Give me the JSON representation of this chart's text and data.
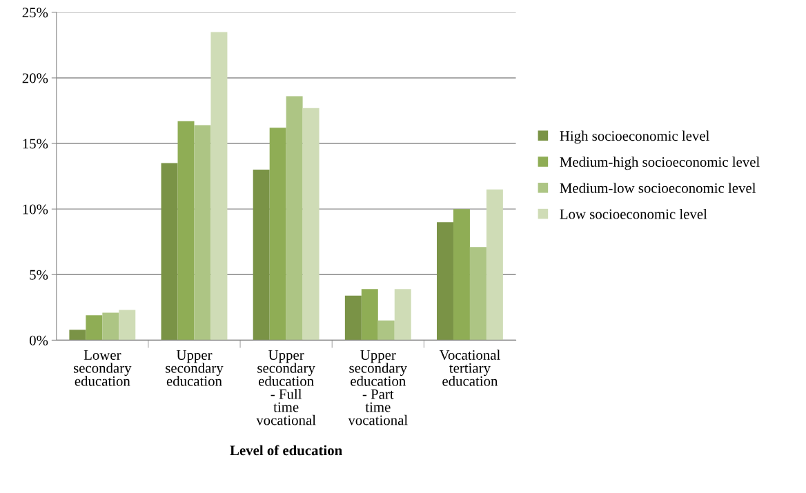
{
  "chart_data": {
    "type": "bar",
    "xlabel": "Level of education",
    "categories": [
      "Lower secondary education",
      "Upper secondary education",
      "Upper secondary education - Full time vocational",
      "Upper secondary education - Part time vocational",
      "Vocational tertiary education"
    ],
    "series": [
      {
        "name": "High socioeconomic level",
        "color": "#7a9346",
        "values": [
          0.8,
          13.5,
          13.0,
          3.4,
          9.0
        ]
      },
      {
        "name": "Medium-high socioeconomic level",
        "color": "#8fad55",
        "values": [
          1.9,
          16.7,
          16.2,
          3.9,
          10.0
        ]
      },
      {
        "name": "Medium-low socioeconomic level",
        "color": "#adc584",
        "values": [
          2.1,
          16.4,
          18.6,
          1.5,
          7.1
        ]
      },
      {
        "name": "Low socioeconomic level",
        "color": "#cfdcb6",
        "values": [
          2.3,
          23.5,
          17.7,
          3.9,
          11.5
        ]
      }
    ],
    "ylim": [
      0,
      25
    ],
    "yticks": [
      {
        "value": 0,
        "label": "0%"
      },
      {
        "value": 5,
        "label": "5%"
      },
      {
        "value": 10,
        "label": "10%"
      },
      {
        "value": 15,
        "label": "15%"
      },
      {
        "value": 20,
        "label": "20%"
      },
      {
        "value": 25,
        "label": "25%"
      }
    ],
    "grid": "y",
    "legend": "right"
  }
}
